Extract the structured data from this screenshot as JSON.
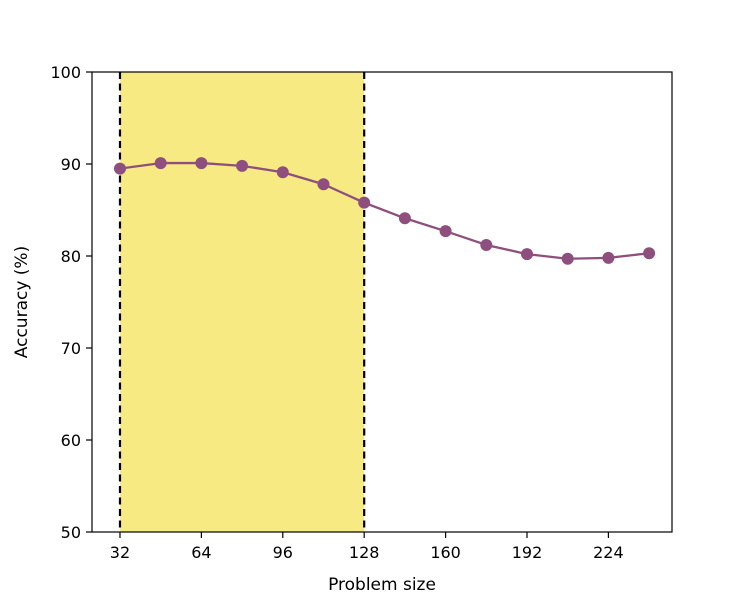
{
  "chart_data": {
    "type": "line",
    "title": "",
    "xlabel": "Problem size",
    "ylabel": "Accuracy (%)",
    "xlim": [
      21,
      249
    ],
    "ylim": [
      50,
      100
    ],
    "xticks": [
      32,
      64,
      96,
      128,
      160,
      192,
      224
    ],
    "yticks": [
      50,
      60,
      70,
      80,
      90,
      100
    ],
    "grid": false,
    "legend": "none",
    "highlight_region": {
      "x_start": 32,
      "x_end": 128,
      "color": "#f7ea82",
      "boundary_style": "dashed",
      "boundary_color": "#000000"
    },
    "series": [
      {
        "color": "#8e4f7f",
        "marker": "circle",
        "x": [
          32,
          48,
          64,
          80,
          96,
          112,
          128,
          144,
          160,
          176,
          192,
          208,
          224,
          240
        ],
        "y": [
          89.5,
          90.1,
          90.1,
          89.8,
          89.1,
          87.8,
          85.8,
          84.1,
          82.7,
          81.2,
          80.2,
          79.7,
          79.8,
          80.3
        ]
      }
    ]
  }
}
